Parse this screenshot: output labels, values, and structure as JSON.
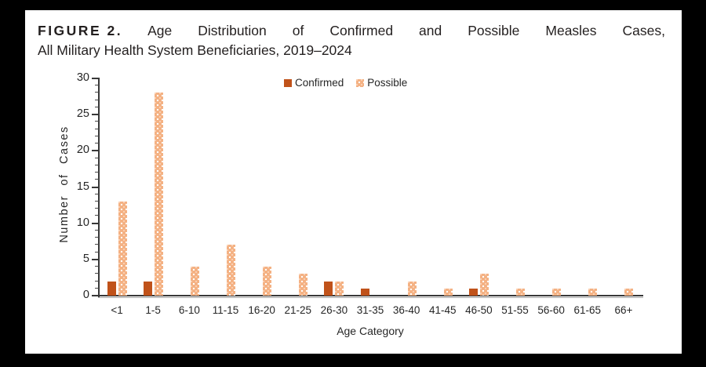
{
  "figure": {
    "label": "FIGURE 2.",
    "title_line1_rest": "Age Distribution of Confirmed and Possible Measles Cases,",
    "title_line2": "All Military Health System Beneficiaries, 2019–2024"
  },
  "chart_data": {
    "type": "bar",
    "title": "FIGURE 2. Age Distribution of Confirmed and Possible Measles Cases, All Military Health System Beneficiaries, 2019–2024",
    "categories": [
      "<1",
      "1-5",
      "6-10",
      "11-15",
      "16-20",
      "21-25",
      "26-30",
      "31-35",
      "36-40",
      "41-45",
      "46-50",
      "51-55",
      "56-60",
      "61-65",
      "66+"
    ],
    "series": [
      {
        "name": "Confirmed",
        "color": "#c0521a",
        "fill": "solid",
        "values": [
          2,
          2,
          0,
          0,
          0,
          0,
          2,
          1,
          0,
          0,
          1,
          0,
          0,
          0,
          0
        ]
      },
      {
        "name": "Possible",
        "color": "#f4b183",
        "fill": "dotted",
        "values": [
          13,
          28,
          4,
          7,
          4,
          3,
          2,
          0,
          2,
          1,
          3,
          1,
          1,
          1,
          1
        ]
      }
    ],
    "xlabel": "Age Category",
    "ylabel": "Number of Cases",
    "ylim": [
      0,
      30
    ],
    "yticks": [
      0,
      5,
      10,
      15,
      20,
      25,
      30
    ],
    "minor_tick_interval": 1,
    "grid": false,
    "legend_position": "top-center",
    "colors": {
      "confirmed": "#c0521a",
      "possible": "#f4b183",
      "axis": "#383838",
      "text": "#262626",
      "frame": "#000000",
      "background": "#ffffff"
    }
  }
}
